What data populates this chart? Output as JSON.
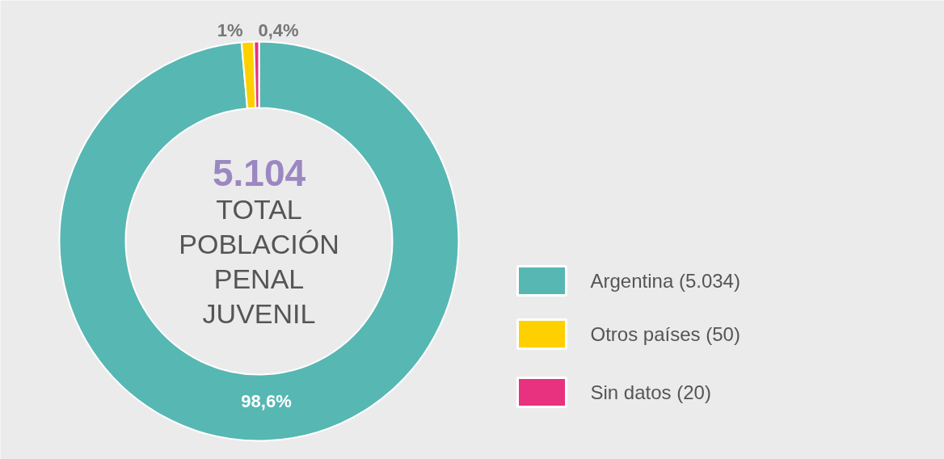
{
  "chart_data": {
    "type": "donut",
    "categories": [
      "Argentina (5.034)",
      "Otros países (50)",
      "Sin datos (20)"
    ],
    "values": [
      98.6,
      1,
      0.4
    ],
    "colors": [
      "#57b7b3",
      "#ffd000",
      "#e8317f"
    ],
    "value_labels": [
      "98,6%",
      "1%",
      "0,4%"
    ],
    "annotations": [
      "5.104",
      "TOTAL POBLACIÓN PENAL JUVENIL"
    ],
    "legend": "right"
  }
}
